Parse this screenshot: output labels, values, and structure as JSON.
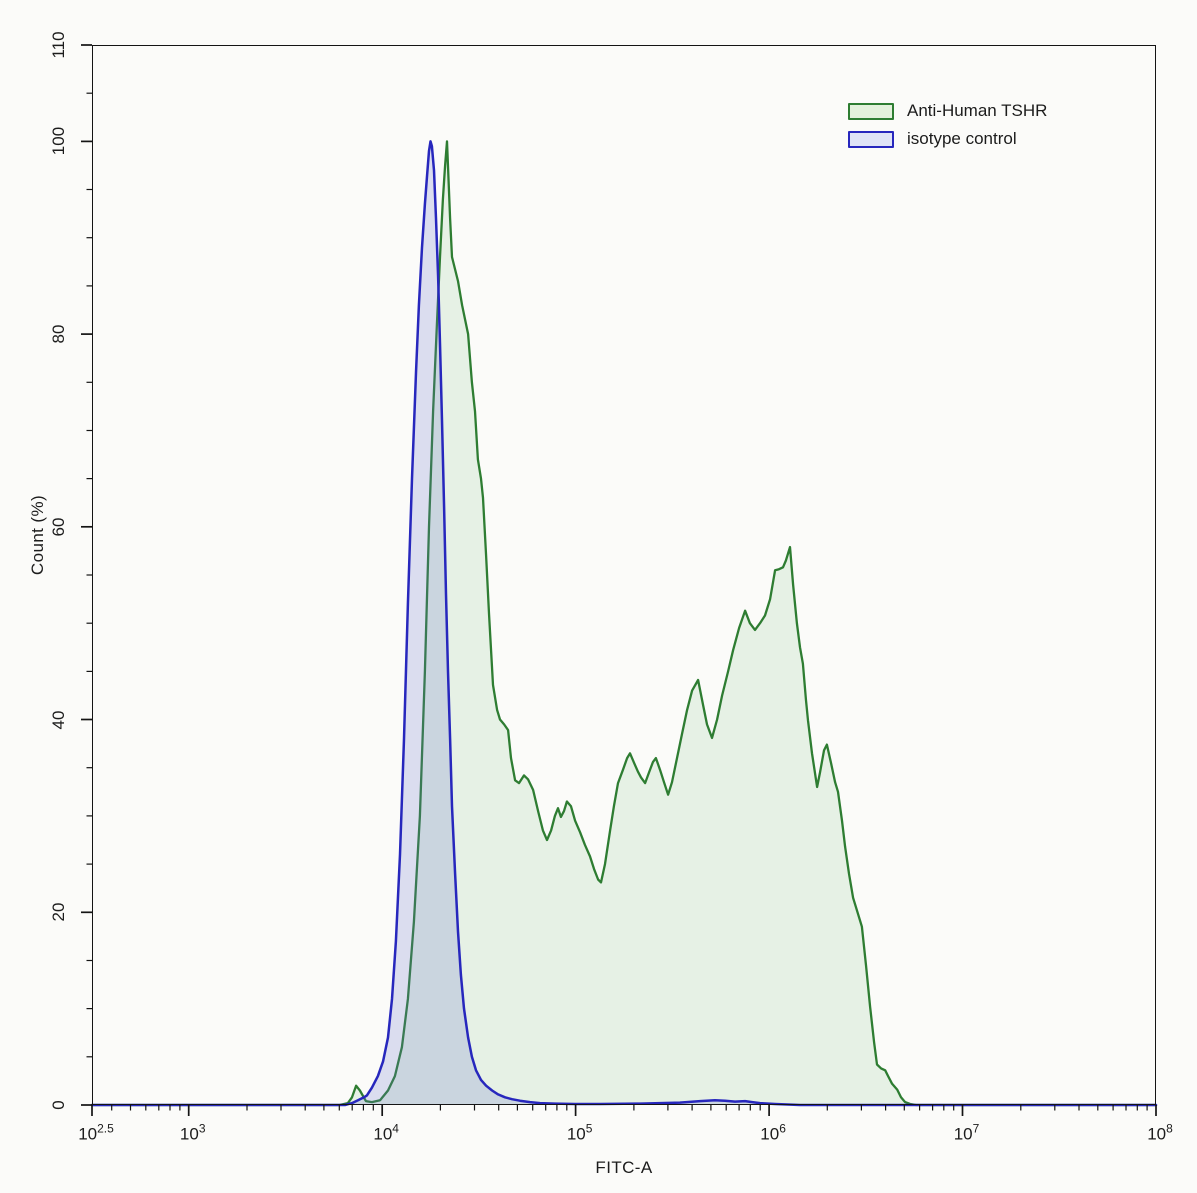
{
  "chart_data": {
    "type": "area",
    "title": "",
    "xlabel": "FITC-A",
    "ylabel": "Count (%)",
    "x_scale": "log10",
    "x_range_log": [
      2.5,
      8
    ],
    "y_range": [
      0,
      110
    ],
    "grid": false,
    "legend_position": "top-right-inside",
    "x_major_ticks": [
      {
        "base": "10",
        "exp": "2.5",
        "log": 2.5
      },
      {
        "base": "10",
        "exp": "3",
        "log": 3
      },
      {
        "base": "10",
        "exp": "4",
        "log": 4
      },
      {
        "base": "10",
        "exp": "5",
        "log": 5
      },
      {
        "base": "10",
        "exp": "6",
        "log": 6
      },
      {
        "base": "10",
        "exp": "7",
        "log": 7
      },
      {
        "base": "10",
        "exp": "8",
        "log": 8
      }
    ],
    "y_major_ticks": [
      0,
      20,
      40,
      60,
      80,
      100,
      110
    ],
    "y_minor_step": 5,
    "axis_color": "#141414",
    "series": [
      {
        "name": "Anti-Human TSHR",
        "color": "#2e7d32",
        "fill": "rgba(125,190,125,0.16)",
        "legend_fill": "#e3f1dc",
        "stroke_width": 2.3,
        "points": [
          [
            2.5,
            0
          ],
          [
            3.78,
            0
          ],
          [
            3.823,
            0.2
          ],
          [
            3.844,
            0.8
          ],
          [
            3.865,
            2
          ],
          [
            3.885,
            1.5
          ],
          [
            3.916,
            0.4
          ],
          [
            3.947,
            0.3
          ],
          [
            3.989,
            0.5
          ],
          [
            4.03,
            1.5
          ],
          [
            4.066,
            3
          ],
          [
            4.102,
            6
          ],
          [
            4.133,
            11
          ],
          [
            4.164,
            19
          ],
          [
            4.195,
            30
          ],
          [
            4.221,
            45
          ],
          [
            4.242,
            60
          ],
          [
            4.263,
            72
          ],
          [
            4.283,
            81
          ],
          [
            4.299,
            88
          ],
          [
            4.314,
            94
          ],
          [
            4.325,
            97.5
          ],
          [
            4.335,
            100
          ],
          [
            4.351,
            92
          ],
          [
            4.361,
            88
          ],
          [
            4.392,
            85.5
          ],
          [
            4.413,
            83
          ],
          [
            4.444,
            80
          ],
          [
            4.464,
            75
          ],
          [
            4.48,
            72
          ],
          [
            4.495,
            67
          ],
          [
            4.511,
            65
          ],
          [
            4.521,
            63
          ],
          [
            4.537,
            57
          ],
          [
            4.552,
            51
          ],
          [
            4.573,
            43.6
          ],
          [
            4.594,
            41
          ],
          [
            4.609,
            40
          ],
          [
            4.63,
            39.5
          ],
          [
            4.651,
            38.9
          ],
          [
            4.666,
            36
          ],
          [
            4.687,
            33.7
          ],
          [
            4.707,
            33.4
          ],
          [
            4.733,
            34.2
          ],
          [
            4.754,
            33.8
          ],
          [
            4.78,
            32.7
          ],
          [
            4.806,
            30.5
          ],
          [
            4.831,
            28.5
          ],
          [
            4.852,
            27.5
          ],
          [
            4.873,
            28.5
          ],
          [
            4.893,
            30
          ],
          [
            4.909,
            30.8
          ],
          [
            4.924,
            29.9
          ],
          [
            4.94,
            30.5
          ],
          [
            4.955,
            31.5
          ],
          [
            4.976,
            31
          ],
          [
            4.997,
            29.5
          ],
          [
            5.023,
            28.3
          ],
          [
            5.048,
            27
          ],
          [
            5.074,
            25.8
          ],
          [
            5.095,
            24.5
          ],
          [
            5.116,
            23.4
          ],
          [
            5.131,
            23.1
          ],
          [
            5.152,
            25
          ],
          [
            5.178,
            28.5
          ],
          [
            5.198,
            31
          ],
          [
            5.219,
            33.4
          ],
          [
            5.245,
            34.8
          ],
          [
            5.266,
            36
          ],
          [
            5.281,
            36.5
          ],
          [
            5.302,
            35.5
          ],
          [
            5.322,
            34.6
          ],
          [
            5.338,
            34
          ],
          [
            5.359,
            33.4
          ],
          [
            5.379,
            34.5
          ],
          [
            5.4,
            35.6
          ],
          [
            5.415,
            36
          ],
          [
            5.436,
            34.8
          ],
          [
            5.457,
            33.5
          ],
          [
            5.478,
            32.2
          ],
          [
            5.498,
            33.5
          ],
          [
            5.524,
            36
          ],
          [
            5.55,
            38.5
          ],
          [
            5.576,
            41
          ],
          [
            5.602,
            43
          ],
          [
            5.633,
            44.1
          ],
          [
            5.659,
            41.5
          ],
          [
            5.679,
            39.5
          ],
          [
            5.705,
            38.1
          ],
          [
            5.731,
            40
          ],
          [
            5.757,
            42.5
          ],
          [
            5.788,
            45
          ],
          [
            5.814,
            47.2
          ],
          [
            5.845,
            49.5
          ],
          [
            5.876,
            51.3
          ],
          [
            5.901,
            50
          ],
          [
            5.927,
            49.3
          ],
          [
            5.953,
            50
          ],
          [
            5.979,
            50.8
          ],
          [
            6.005,
            52.5
          ],
          [
            6.031,
            55.5
          ],
          [
            6.051,
            55.6
          ],
          [
            6.072,
            55.8
          ],
          [
            6.087,
            56.5
          ],
          [
            6.108,
            57.9
          ],
          [
            6.124,
            54
          ],
          [
            6.144,
            50
          ],
          [
            6.16,
            47.5
          ],
          [
            6.175,
            45.8
          ],
          [
            6.191,
            42
          ],
          [
            6.201,
            39.9
          ],
          [
            6.222,
            36.5
          ],
          [
            6.248,
            33
          ],
          [
            6.263,
            34.5
          ],
          [
            6.284,
            36.8
          ],
          [
            6.299,
            37.4
          ],
          [
            6.32,
            35.5
          ],
          [
            6.341,
            33.5
          ],
          [
            6.356,
            32.5
          ],
          [
            6.377,
            29.5
          ],
          [
            6.393,
            26.8
          ],
          [
            6.413,
            24
          ],
          [
            6.434,
            21.5
          ],
          [
            6.46,
            19.8
          ],
          [
            6.48,
            18.5
          ],
          [
            6.501,
            14.5
          ],
          [
            6.522,
            10.2
          ],
          [
            6.543,
            6.5
          ],
          [
            6.558,
            4.2
          ],
          [
            6.579,
            3.8
          ],
          [
            6.6,
            3.6
          ],
          [
            6.615,
            3
          ],
          [
            6.636,
            2.2
          ],
          [
            6.662,
            1.6
          ],
          [
            6.682,
            0.8
          ],
          [
            6.703,
            0.3
          ],
          [
            6.729,
            0.1
          ],
          [
            6.76,
            0
          ],
          [
            8,
            0
          ]
        ]
      },
      {
        "name": "isotype control",
        "color": "#2727bd",
        "fill": "rgba(105,115,205,0.22)",
        "legend_fill": "#dfe3f6",
        "stroke_width": 2.5,
        "points": [
          [
            2.5,
            0
          ],
          [
            3.808,
            0
          ],
          [
            3.844,
            0.2
          ],
          [
            3.875,
            0.5
          ],
          [
            3.906,
            0.8
          ],
          [
            3.921,
            1
          ],
          [
            3.947,
            1.8
          ],
          [
            3.978,
            3
          ],
          [
            4.004,
            4.5
          ],
          [
            4.03,
            7
          ],
          [
            4.051,
            11
          ],
          [
            4.071,
            17
          ],
          [
            4.092,
            26
          ],
          [
            4.113,
            38
          ],
          [
            4.133,
            52
          ],
          [
            4.154,
            65
          ],
          [
            4.175,
            76
          ],
          [
            4.19,
            83
          ],
          [
            4.206,
            89
          ],
          [
            4.221,
            93.5
          ],
          [
            4.232,
            96.5
          ],
          [
            4.242,
            99
          ],
          [
            4.25,
            100
          ],
          [
            4.257,
            99.5
          ],
          [
            4.268,
            97
          ],
          [
            4.278,
            92
          ],
          [
            4.289,
            86
          ],
          [
            4.299,
            79
          ],
          [
            4.309,
            71
          ],
          [
            4.32,
            62
          ],
          [
            4.33,
            53
          ],
          [
            4.34,
            45
          ],
          [
            4.351,
            38
          ],
          [
            4.361,
            31
          ],
          [
            4.377,
            24
          ],
          [
            4.392,
            18
          ],
          [
            4.407,
            13.5
          ],
          [
            4.423,
            10
          ],
          [
            4.444,
            7
          ],
          [
            4.464,
            5
          ],
          [
            4.485,
            3.6
          ],
          [
            4.511,
            2.6
          ],
          [
            4.537,
            2
          ],
          [
            4.568,
            1.5
          ],
          [
            4.599,
            1.1
          ],
          [
            4.635,
            0.8
          ],
          [
            4.671,
            0.6
          ],
          [
            4.712,
            0.45
          ],
          [
            4.764,
            0.3
          ],
          [
            4.816,
            0.2
          ],
          [
            4.893,
            0.15
          ],
          [
            4.997,
            0.1
          ],
          [
            5.126,
            0.1
          ],
          [
            5.333,
            0.15
          ],
          [
            5.436,
            0.2
          ],
          [
            5.539,
            0.25
          ],
          [
            5.643,
            0.4
          ],
          [
            5.72,
            0.5
          ],
          [
            5.772,
            0.45
          ],
          [
            5.824,
            0.35
          ],
          [
            5.876,
            0.4
          ],
          [
            5.912,
            0.3
          ],
          [
            5.953,
            0.2
          ],
          [
            6.031,
            0.1
          ],
          [
            6.16,
            0
          ],
          [
            8,
            0
          ]
        ]
      }
    ]
  }
}
